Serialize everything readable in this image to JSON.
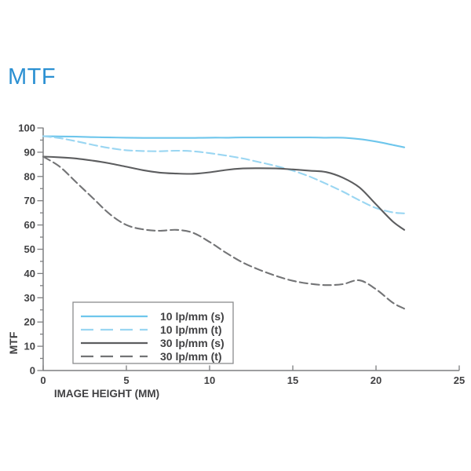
{
  "header": {
    "title": "MTF",
    "title_color": "#2B90D2"
  },
  "chart_data": {
    "type": "line",
    "title": "MTF",
    "xlabel": "IMAGE HEIGHT (MM)",
    "ylabel": "MTF",
    "xlim": [
      0,
      25
    ],
    "ylim": [
      0,
      100
    ],
    "x_ticks": [
      0,
      5,
      10,
      15,
      20,
      25
    ],
    "y_ticks": [
      0,
      10,
      20,
      30,
      40,
      50,
      60,
      70,
      80,
      90,
      100
    ],
    "y_minor_tick_step": 5,
    "grid": false,
    "legend_position": "lower-left",
    "axis_color": "#7D7E80",
    "label_color": "#414143",
    "legend_border_color": "#8A8B8D",
    "x": [
      0,
      1,
      2,
      3,
      4,
      5,
      6,
      7,
      8,
      9,
      10,
      11,
      12,
      13,
      14,
      15,
      16,
      17,
      18,
      19,
      20,
      21,
      21.7
    ],
    "series": [
      {
        "name": "10 lp/mm (s)",
        "linestyle": "solid",
        "color": "#6EC6EC",
        "values": [
          96.6,
          96.5,
          96.4,
          96.2,
          96.1,
          96.0,
          95.9,
          95.9,
          95.9,
          95.9,
          96.0,
          96.0,
          96.1,
          96.1,
          96.1,
          96.1,
          96.1,
          96.0,
          96.0,
          95.4,
          94.4,
          93.0,
          92.0
        ]
      },
      {
        "name": "10 lp/mm (t)",
        "linestyle": "dashed",
        "color": "#9AD6F2",
        "values": [
          96.6,
          95.8,
          94.5,
          93.0,
          91.7,
          90.8,
          90.5,
          90.4,
          90.6,
          90.4,
          89.6,
          88.6,
          87.4,
          85.9,
          84.3,
          82.4,
          80.0,
          77.0,
          73.8,
          70.2,
          67.0,
          65.2,
          64.8
        ]
      },
      {
        "name": "30 lp/mm (s)",
        "linestyle": "solid",
        "color": "#5C5D5F",
        "values": [
          88.2,
          87.9,
          87.4,
          86.5,
          85.4,
          84.0,
          82.6,
          81.6,
          81.2,
          81.1,
          81.7,
          82.7,
          83.3,
          83.4,
          83.3,
          82.9,
          82.4,
          81.8,
          79.5,
          75.5,
          68.5,
          61.5,
          58.0
        ]
      },
      {
        "name": "30 lp/mm (t)",
        "linestyle": "dashed",
        "color": "#737476",
        "values": [
          88.2,
          84.0,
          77.5,
          71.0,
          64.5,
          60.0,
          58.2,
          57.6,
          58.0,
          56.8,
          53.0,
          48.5,
          44.5,
          41.5,
          39.0,
          37.0,
          35.8,
          35.2,
          35.6,
          37.2,
          33.5,
          28.0,
          25.5
        ]
      }
    ]
  }
}
